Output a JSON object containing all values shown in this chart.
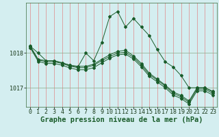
{
  "bg_color": "#d4eef0",
  "line_color": "#1a5c2a",
  "xlabel": "Graphe pression niveau de la mer (hPa)",
  "xlabel_fontsize": 7.5,
  "ylabel_ticks": [
    1017,
    1018
  ],
  "xlim": [
    -0.5,
    23.5
  ],
  "ylim": [
    1016.45,
    1019.45
  ],
  "tick_fontsize": 6,
  "series": [
    [
      1018.2,
      1018.0,
      1017.78,
      1017.78,
      1017.72,
      1017.65,
      1017.6,
      1018.0,
      1017.78,
      1018.3,
      1019.05,
      1019.2,
      1018.75,
      1019.0,
      1018.75,
      1018.5,
      1018.1,
      1017.75,
      1017.6,
      1017.35,
      1017.0,
      1017.0,
      1017.0,
      1016.9
    ],
    [
      1018.2,
      1017.82,
      1017.78,
      1017.78,
      1017.72,
      1017.65,
      1017.62,
      1017.62,
      1017.68,
      1017.82,
      1017.95,
      1018.05,
      1018.08,
      1017.92,
      1017.7,
      1017.42,
      1017.25,
      1017.08,
      1016.88,
      1016.78,
      1016.62,
      1017.0,
      1017.0,
      1016.88
    ],
    [
      1018.18,
      1017.8,
      1017.75,
      1017.75,
      1017.7,
      1017.62,
      1017.58,
      1017.58,
      1017.65,
      1017.78,
      1017.9,
      1018.0,
      1018.02,
      1017.88,
      1017.65,
      1017.38,
      1017.22,
      1017.05,
      1016.84,
      1016.74,
      1016.58,
      1016.96,
      1016.96,
      1016.84
    ],
    [
      1018.15,
      1017.76,
      1017.7,
      1017.7,
      1017.65,
      1017.57,
      1017.52,
      1017.52,
      1017.58,
      1017.72,
      1017.85,
      1017.95,
      1017.97,
      1017.83,
      1017.6,
      1017.33,
      1017.17,
      1017.0,
      1016.79,
      1016.69,
      1016.53,
      1016.91,
      1016.91,
      1016.79
    ]
  ],
  "n_xticks": 24
}
